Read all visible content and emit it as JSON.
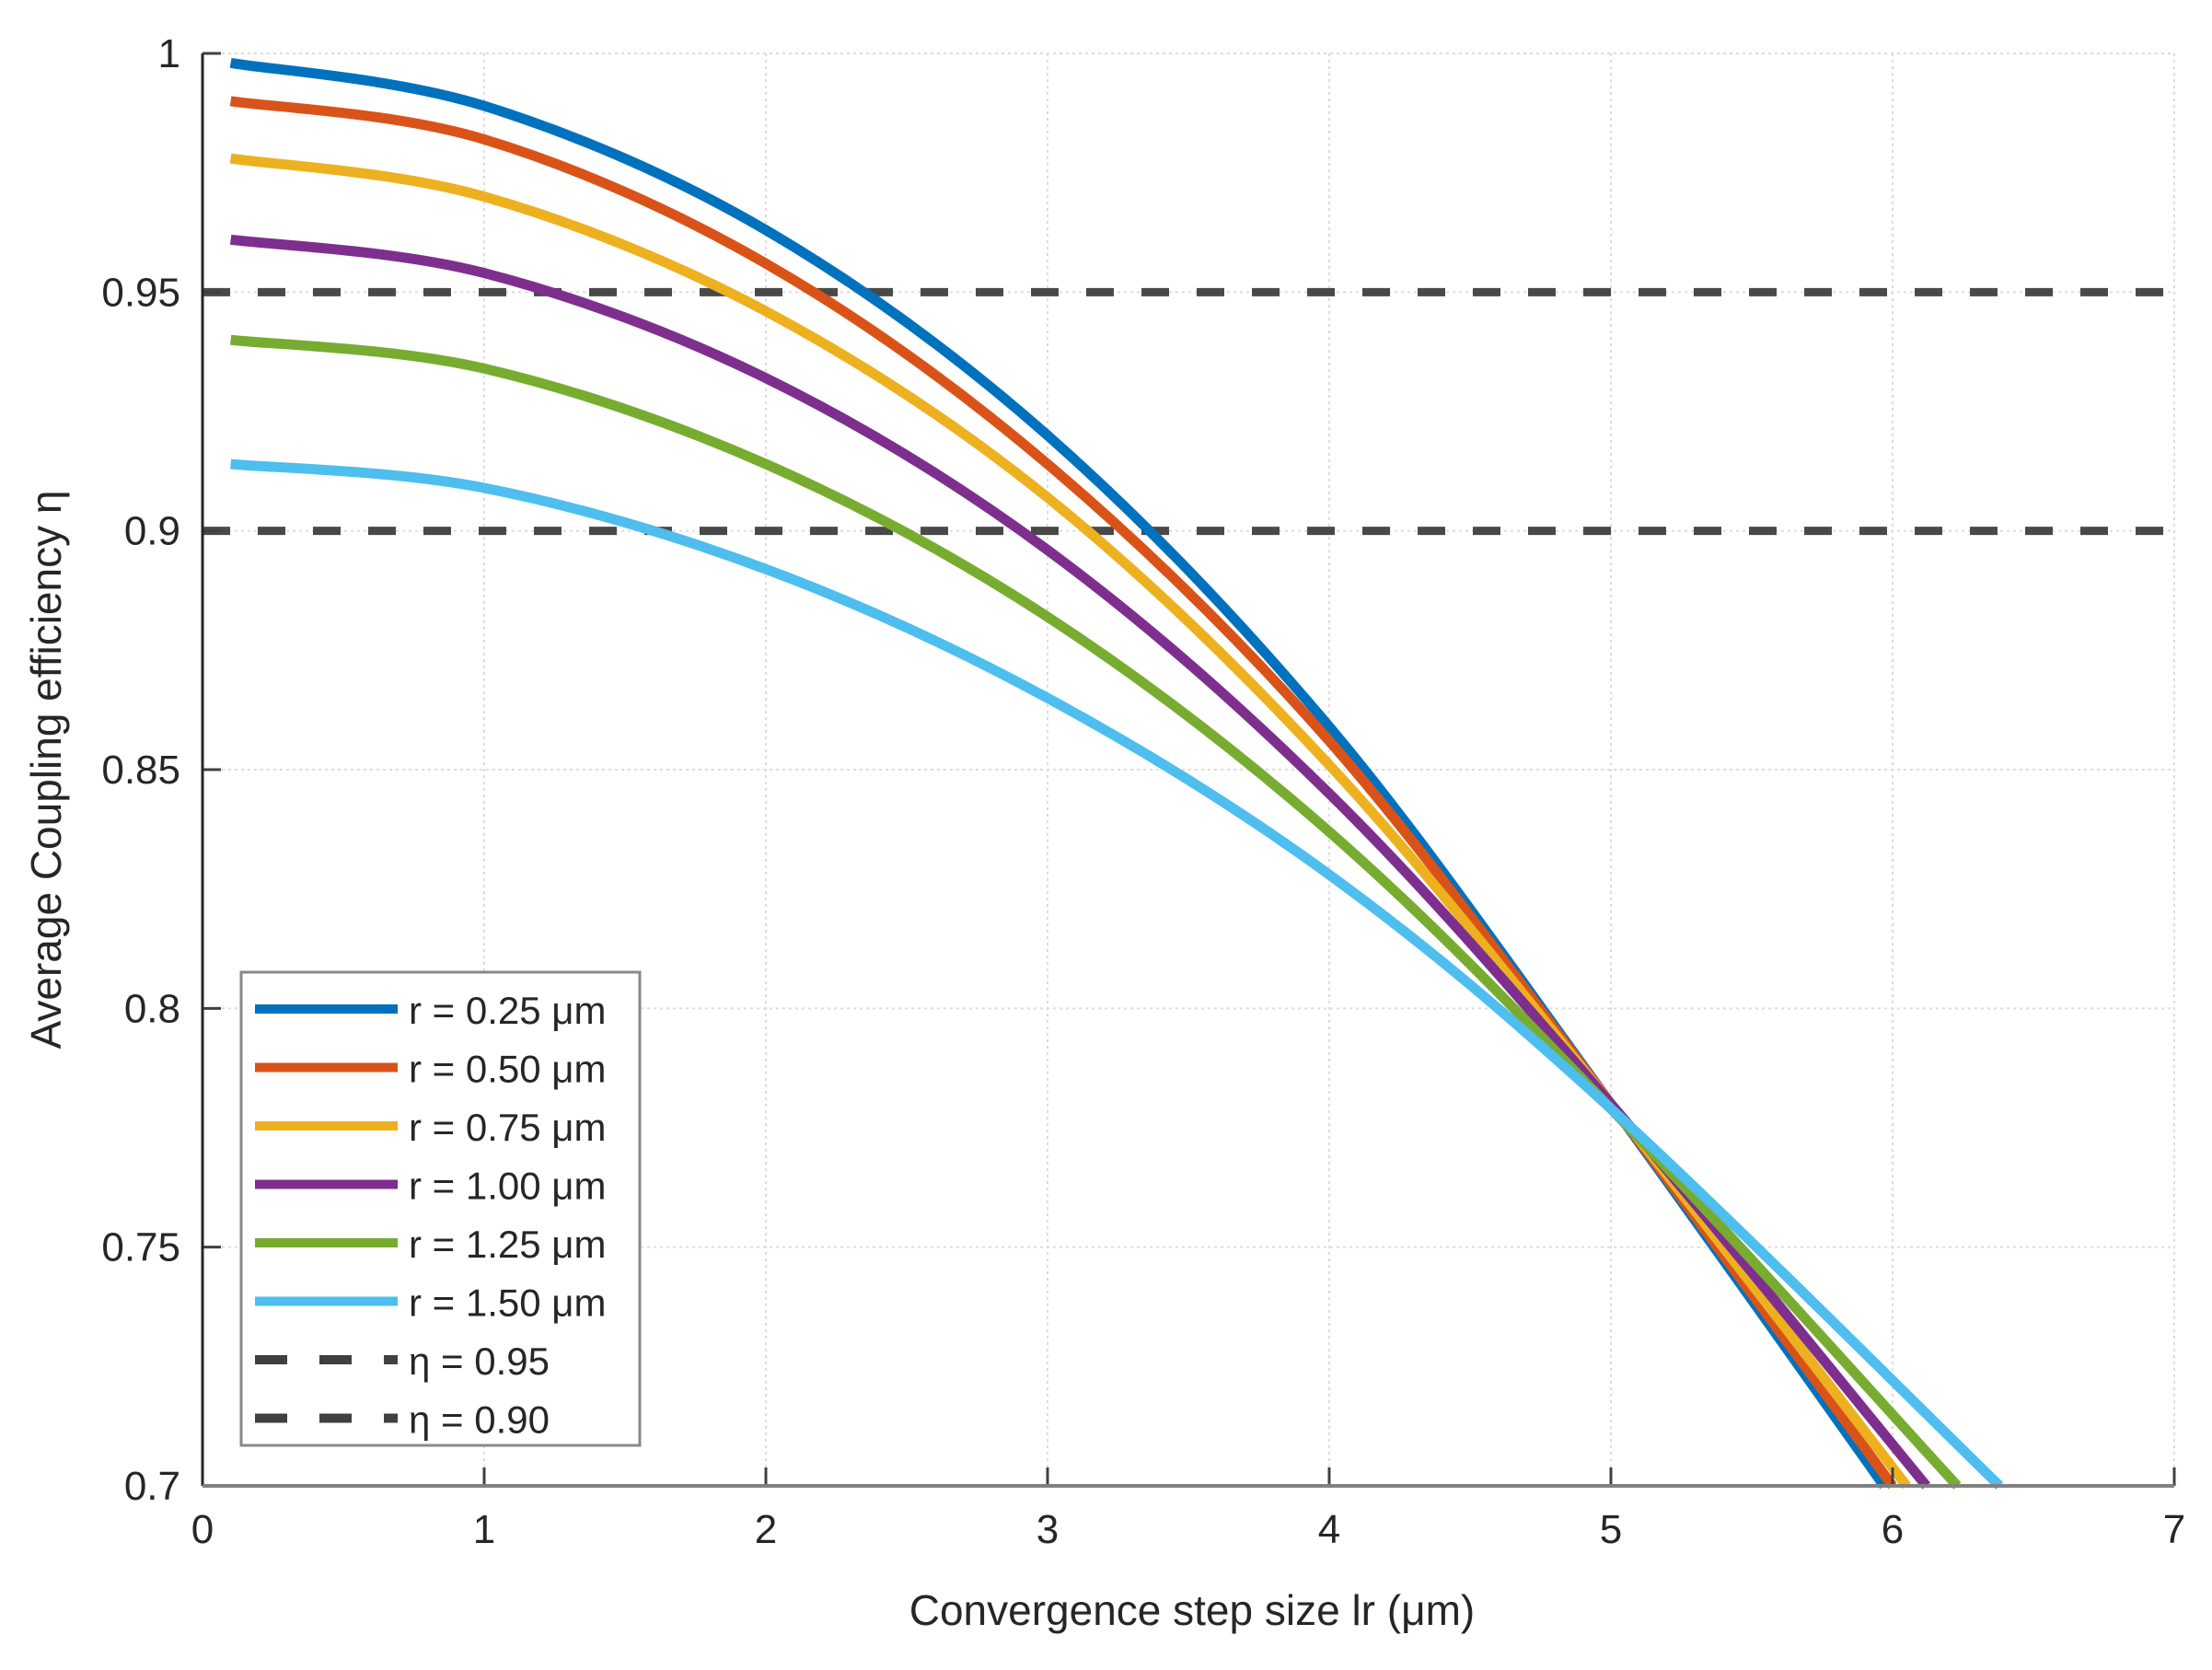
{
  "chart_data": {
    "type": "line",
    "title": "",
    "xlabel": "Convergence step size lr (μm)",
    "ylabel": "Average Coupling efficiency η",
    "xlim": [
      0,
      7
    ],
    "ylim": [
      0.7,
      1
    ],
    "xticks": [
      "0",
      "1",
      "2",
      "3",
      "4",
      "5",
      "6",
      "7"
    ],
    "xtick_values": [
      0,
      1,
      2,
      3,
      4,
      5,
      6,
      7
    ],
    "yticks": [
      "0.7",
      "0.75",
      "0.8",
      "0.85",
      "0.9",
      "0.95",
      "1"
    ],
    "ytick_values": [
      0.7,
      0.75,
      0.8,
      0.85,
      0.9,
      0.95,
      1
    ],
    "grid": true,
    "legend_position": "bottom-left",
    "series": [
      {
        "name": "r = 0.25 μm",
        "color": "#0072BD",
        "x": [
          0.1,
          1,
          2,
          3,
          4,
          5,
          5.97
        ],
        "y": [
          0.998,
          0.989,
          0.963,
          0.92,
          0.859,
          0.78,
          0.7
        ]
      },
      {
        "name": "r = 0.50 μm",
        "color": "#D95319",
        "x": [
          0.1,
          1,
          2,
          3,
          4,
          5,
          6.0
        ],
        "y": [
          0.99,
          0.982,
          0.956,
          0.914,
          0.856,
          0.78,
          0.7
        ]
      },
      {
        "name": "r = 0.75 μm",
        "color": "#EDB120",
        "x": [
          0.1,
          1,
          2,
          3,
          4,
          5,
          6.05
        ],
        "y": [
          0.978,
          0.97,
          0.946,
          0.907,
          0.851,
          0.78,
          0.7
        ]
      },
      {
        "name": "r = 1.00 μm",
        "color": "#7E2F8E",
        "x": [
          0.1,
          1,
          2,
          3,
          4,
          5,
          6.12
        ],
        "y": [
          0.961,
          0.954,
          0.932,
          0.896,
          0.845,
          0.78,
          0.7
        ]
      },
      {
        "name": "r = 1.25 μm",
        "color": "#77AC30",
        "x": [
          0.1,
          1,
          2,
          3,
          4,
          5,
          6.23
        ],
        "y": [
          0.94,
          0.934,
          0.914,
          0.882,
          0.837,
          0.779,
          0.7
        ]
      },
      {
        "name": "r = 1.50 μm",
        "color": "#4DBEEE",
        "x": [
          0.1,
          1,
          2,
          3,
          4,
          5,
          6.38
        ],
        "y": [
          0.914,
          0.909,
          0.892,
          0.865,
          0.828,
          0.779,
          0.7
        ]
      }
    ],
    "reference_lines": [
      {
        "name": "η = 0.95",
        "y": 0.95,
        "color": "#404040",
        "style": "dashed"
      },
      {
        "name": "η = 0.90",
        "y": 0.9,
        "color": "#404040",
        "style": "dashed"
      }
    ]
  }
}
